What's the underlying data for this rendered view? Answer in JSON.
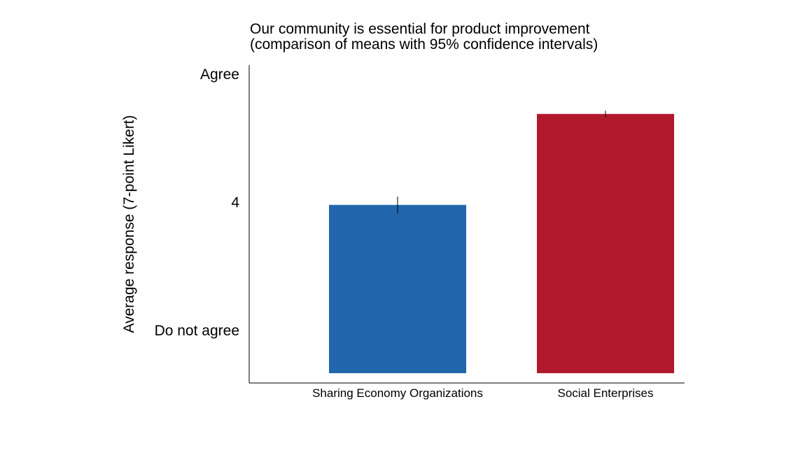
{
  "chart_data": {
    "type": "bar",
    "title_lines": [
      "Our community is essential for product improvement",
      "(comparison of means with 95% confidence intervals)"
    ],
    "xlabel": "",
    "ylabel": "Average response (7-point Likert)",
    "categories": [
      "Sharing Economy Organizations",
      "Social Enterprises"
    ],
    "values": [
      3.96,
      5.38
    ],
    "ci": [
      [
        3.83,
        4.09
      ],
      [
        5.33,
        5.43
      ]
    ],
    "bar_colors": [
      "#2166ac",
      "#b2182b"
    ],
    "ylim": [
      1.3,
      6.15
    ],
    "yticks": [
      {
        "value": 2,
        "label": "Do not agree"
      },
      {
        "value": 4,
        "label": "4"
      },
      {
        "value": 6,
        "label": "Agree"
      }
    ],
    "grid": false,
    "legend": "none"
  }
}
